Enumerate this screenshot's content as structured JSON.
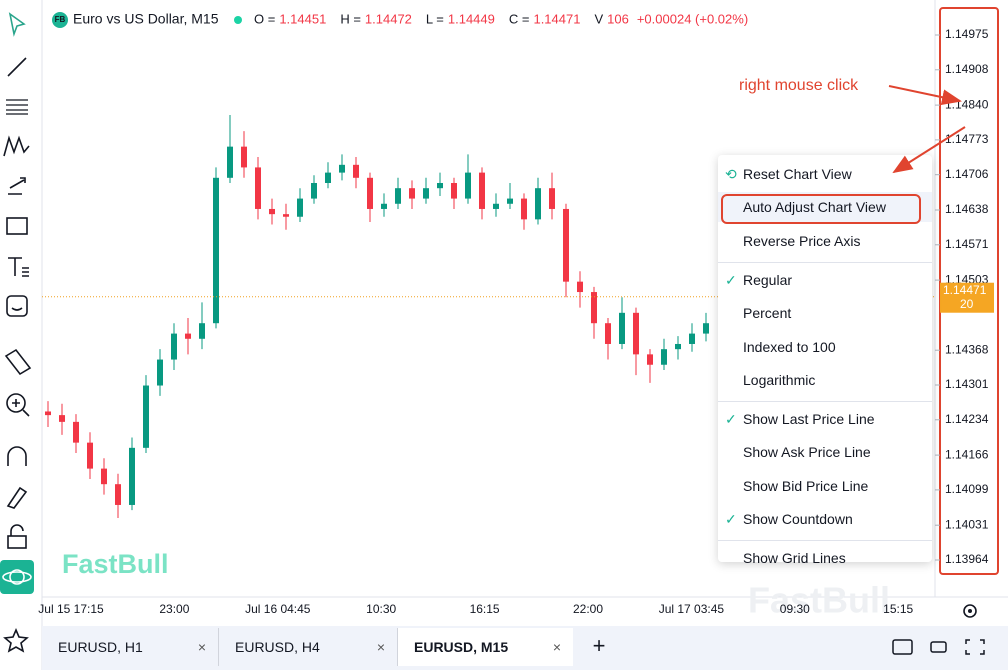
{
  "header": {
    "badge": "FB",
    "symbol": "Euro vs US Dollar, M15",
    "ohlc": [
      {
        "label": "O =",
        "value": 1.14451
      },
      {
        "label": "H =",
        "value": 1.14472
      },
      {
        "label": "L =",
        "value": 1.14449
      },
      {
        "label": "C =",
        "value": 1.14471
      }
    ],
    "volume": {
      "label": "V",
      "value": 106
    },
    "change": "+0.00024 (+0.02%)"
  },
  "chart": {
    "candles": [
      [
        1.1425,
        1.1427,
        1.1422,
        1.14243
      ],
      [
        1.14243,
        1.14265,
        1.14205,
        1.1423
      ],
      [
        1.1423,
        1.14245,
        1.1417,
        1.1419
      ],
      [
        1.1419,
        1.1421,
        1.1412,
        1.1414
      ],
      [
        1.1414,
        1.1416,
        1.1409,
        1.1411
      ],
      [
        1.1411,
        1.1413,
        1.14045,
        1.1407
      ],
      [
        1.1407,
        1.142,
        1.1406,
        1.1418
      ],
      [
        1.1418,
        1.1432,
        1.1417,
        1.143
      ],
      [
        1.143,
        1.1437,
        1.1428,
        1.1435
      ],
      [
        1.1435,
        1.1442,
        1.1433,
        1.144
      ],
      [
        1.144,
        1.1443,
        1.1436,
        1.1439
      ],
      [
        1.1439,
        1.1446,
        1.1437,
        1.1442
      ],
      [
        1.1442,
        1.1472,
        1.1441,
        1.147
      ],
      [
        1.147,
        1.14821,
        1.1469,
        1.1476
      ],
      [
        1.1476,
        1.1479,
        1.147,
        1.1472
      ],
      [
        1.1472,
        1.1474,
        1.1462,
        1.1464
      ],
      [
        1.1464,
        1.1466,
        1.1461,
        1.1463
      ],
      [
        1.1463,
        1.1465,
        1.146,
        1.14625
      ],
      [
        1.14625,
        1.1468,
        1.14615,
        1.1466
      ],
      [
        1.1466,
        1.14705,
        1.1465,
        1.1469
      ],
      [
        1.1469,
        1.1473,
        1.1468,
        1.1471
      ],
      [
        1.1471,
        1.14745,
        1.14695,
        1.14725
      ],
      [
        1.14725,
        1.1474,
        1.1468,
        1.147
      ],
      [
        1.147,
        1.1471,
        1.14615,
        1.1464
      ],
      [
        1.1464,
        1.1467,
        1.14625,
        1.1465
      ],
      [
        1.1465,
        1.147,
        1.1464,
        1.1468
      ],
      [
        1.1468,
        1.14695,
        1.1464,
        1.1466
      ],
      [
        1.1466,
        1.147,
        1.1465,
        1.1468
      ],
      [
        1.1468,
        1.1471,
        1.14665,
        1.1469
      ],
      [
        1.1469,
        1.147,
        1.1464,
        1.1466
      ],
      [
        1.1466,
        1.14745,
        1.1465,
        1.1471
      ],
      [
        1.1471,
        1.1472,
        1.1462,
        1.1464
      ],
      [
        1.1464,
        1.1467,
        1.14625,
        1.1465
      ],
      [
        1.1465,
        1.1469,
        1.1464,
        1.1466
      ],
      [
        1.1466,
        1.1467,
        1.146,
        1.1462
      ],
      [
        1.1462,
        1.147,
        1.1461,
        1.1468
      ],
      [
        1.1468,
        1.1471,
        1.1462,
        1.1464
      ],
      [
        1.1464,
        1.1465,
        1.1447,
        1.145
      ],
      [
        1.145,
        1.1452,
        1.1445,
        1.1448
      ],
      [
        1.1448,
        1.1449,
        1.1439,
        1.1442
      ],
      [
        1.1442,
        1.1443,
        1.1435,
        1.1438
      ],
      [
        1.1438,
        1.1447,
        1.1437,
        1.1444
      ],
      [
        1.1444,
        1.1445,
        1.1432,
        1.1436
      ],
      [
        1.1436,
        1.1437,
        1.14305,
        1.1434
      ],
      [
        1.1434,
        1.1439,
        1.1433,
        1.1437
      ],
      [
        1.1437,
        1.14395,
        1.1435,
        1.1438
      ],
      [
        1.1438,
        1.1442,
        1.14365,
        1.144
      ],
      [
        1.144,
        1.1444,
        1.14385,
        1.1442
      ]
    ],
    "up_color": "#089981",
    "down_color": "#f23645"
  },
  "price_axis": {
    "ticks": [
      1.14975,
      1.14908,
      {
        "value": 1.1484,
        "label": "1.14840"
      },
      1.14773,
      1.14706,
      1.14638,
      1.14571,
      1.14503,
      1.14368,
      1.14301,
      1.14234,
      1.14166,
      1.14099,
      1.14031,
      1.13964
    ],
    "countdown": "20"
  },
  "time_axis": [
    "Jul 15 17:15",
    "23:00",
    "Jul 16 04:45",
    "10:30",
    "16:15",
    "22:00",
    "Jul 17 03:45",
    "09:30",
    "15:15"
  ],
  "watermark": "FastBull",
  "annotation": "right mouse click",
  "menu": {
    "groups": [
      [
        {
          "label": "Reset Chart View",
          "icon": true
        },
        {
          "label": "Auto Adjust Chart View",
          "highlighted": true
        },
        {
          "label": "Reverse Price Axis"
        }
      ],
      [
        {
          "label": "Regular",
          "checked": true
        },
        {
          "label": "Percent"
        },
        {
          "label": "Indexed to 100"
        },
        {
          "label": "Logarithmic"
        }
      ],
      [
        {
          "label": "Show Last Price Line",
          "checked": true
        },
        {
          "label": "Show Ask Price Line"
        },
        {
          "label": "Show Bid Price Line"
        },
        {
          "label": "Show Countdown",
          "checked": true
        }
      ],
      [
        {
          "label": "Show Grid Lines"
        }
      ]
    ]
  },
  "tabs": [
    {
      "label": "EURUSD, H1"
    },
    {
      "label": "EURUSD, H4"
    },
    {
      "label": "EURUSD, M15",
      "active": true
    }
  ]
}
